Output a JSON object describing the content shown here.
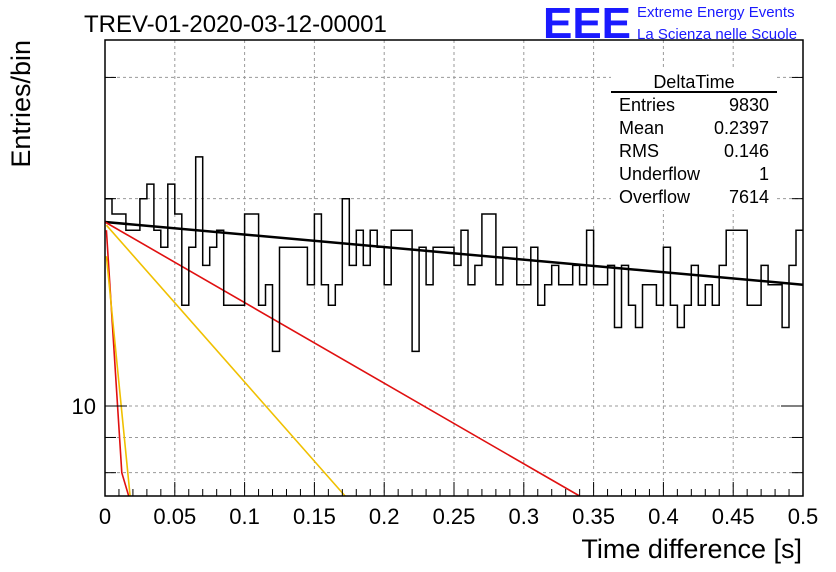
{
  "title": "TREV-01-2020-03-12-00001",
  "logo": {
    "letters": "EEE",
    "line1": "Extreme Energy Events",
    "line2": "La Scienza nelle Scuole",
    "color": "#1a1aff"
  },
  "stats": {
    "name": "DeltaTime",
    "rows": [
      {
        "label": "Entries",
        "value": "9830"
      },
      {
        "label": "Mean",
        "value": "0.2397"
      },
      {
        "label": "RMS",
        "value": "0.146"
      },
      {
        "label": "Underflow",
        "value": "1"
      },
      {
        "label": "Overflow",
        "value": "7614"
      }
    ]
  },
  "chart_data": {
    "type": "histogram",
    "title": "TREV-01-2020-03-12-00001",
    "xlabel": "Time difference [s]",
    "ylabel": "Entries/bin",
    "xlim": [
      0,
      0.5
    ],
    "ylim": [
      7.4,
      34
    ],
    "yscale": "log",
    "grid": true,
    "x_ticks": [
      "0",
      "0.05",
      "0.1",
      "0.15",
      "0.2",
      "0.25",
      "0.3",
      "0.35",
      "0.4",
      "0.45",
      "0.5"
    ],
    "y_tick_labels": [
      "10"
    ],
    "bin_width": 0.005,
    "counts": [
      20,
      19,
      19,
      18,
      18,
      20,
      21,
      18,
      17,
      21,
      19,
      14,
      17,
      23,
      16,
      17,
      18,
      14,
      14,
      14,
      19,
      19,
      14,
      15,
      12,
      17,
      17,
      17,
      17,
      15,
      19,
      15,
      14,
      15,
      20,
      16,
      18,
      16,
      18,
      17,
      15,
      18,
      18,
      18,
      12,
      17,
      15,
      17,
      17,
      17,
      16,
      18,
      15,
      16,
      19,
      19,
      15,
      17,
      17,
      15,
      15,
      17,
      14,
      15,
      16,
      15,
      15,
      16,
      15,
      18,
      15,
      15,
      16,
      13,
      16,
      14,
      13,
      15,
      15,
      14,
      17,
      14,
      13,
      14,
      16,
      14,
      15,
      14,
      16,
      18,
      18,
      18,
      14,
      14,
      16,
      15,
      15,
      13,
      16,
      18
    ],
    "series": [
      {
        "name": "black fit",
        "color": "#000000",
        "x": [
          0,
          0.5
        ],
        "y": [
          18.5,
          15.0
        ]
      },
      {
        "name": "red fit (slow)",
        "color": "#e01010",
        "x": [
          0,
          0.34
        ],
        "y": [
          18.5,
          7.4
        ]
      },
      {
        "name": "yellow fit (slow)",
        "color": "#f0c000",
        "x": [
          0.001,
          0.172
        ],
        "y": [
          18.3,
          7.4
        ]
      },
      {
        "name": "red fit (fast)",
        "color": "#e01010",
        "x": [
          0.001,
          0.012,
          0.017
        ],
        "y": [
          18.0,
          8.0,
          7.4
        ]
      },
      {
        "name": "yellow fit (fast)",
        "color": "#f0c000",
        "x": [
          0.001,
          0.018
        ],
        "y": [
          16.5,
          7.4
        ]
      }
    ]
  }
}
